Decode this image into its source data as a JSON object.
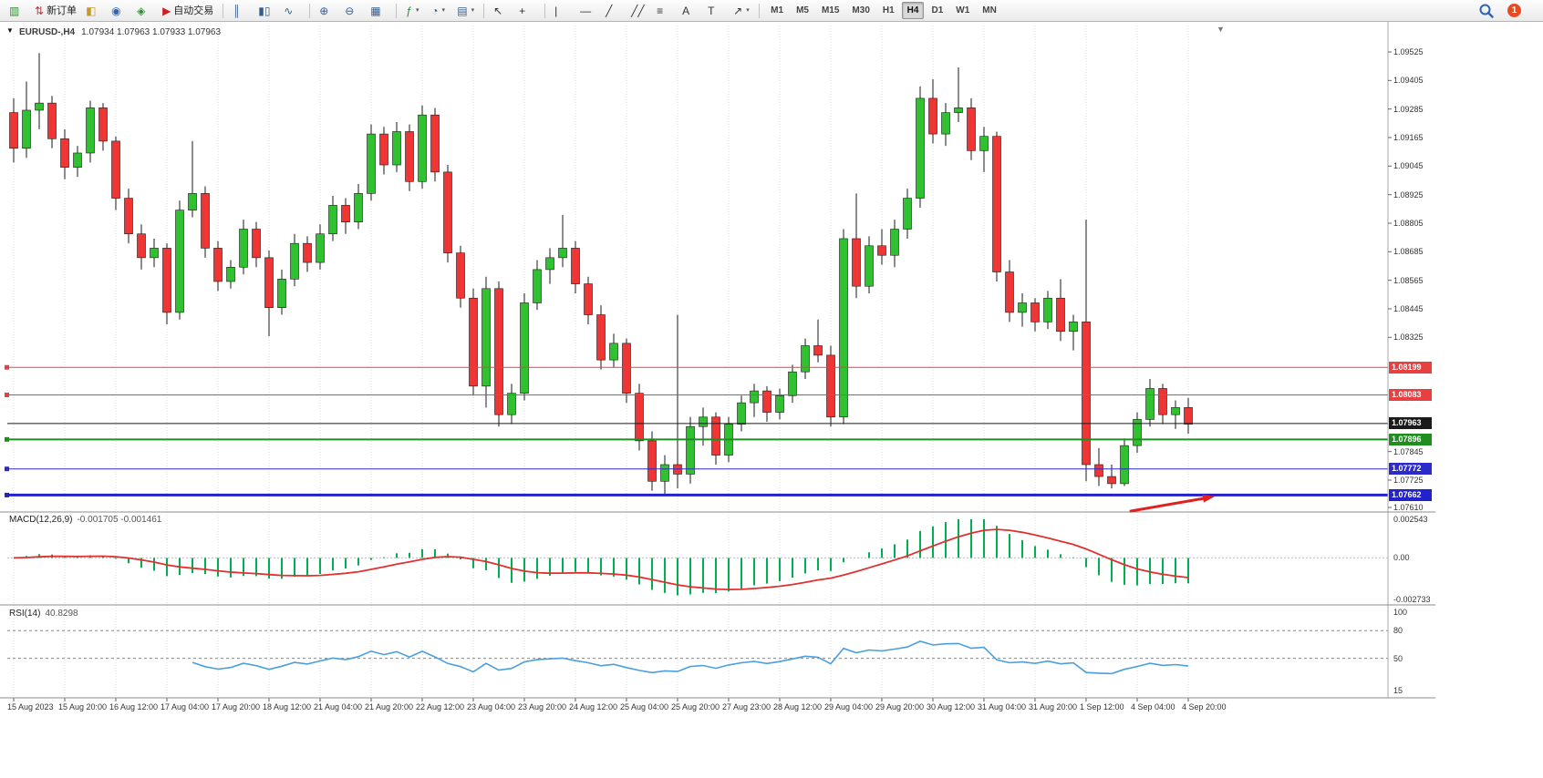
{
  "toolbar": {
    "groups": [
      {
        "name": "file",
        "buttons": [
          {
            "name": "new-chart-button",
            "glyph": "▥",
            "color": "#2e8b2e"
          },
          {
            "name": "new-order-button",
            "glyph": "⇅",
            "color": "#c03a3a",
            "label": "新订单"
          },
          {
            "name": "chart-profiles-button",
            "glyph": "◧",
            "color": "#c79a2e"
          },
          {
            "name": "market-watch-button",
            "glyph": "◉",
            "color": "#2a63b8"
          },
          {
            "name": "navigator-button",
            "glyph": "◈",
            "color": "#2e8b2e"
          },
          {
            "name": "autotrading-button",
            "glyph": "▶",
            "color": "#cc2222",
            "label": "自动交易"
          }
        ]
      },
      {
        "name": "chart-type",
        "buttons": [
          {
            "name": "bar-chart-button",
            "glyph": "║",
            "color": "#355c8c"
          },
          {
            "name": "candlestick-button",
            "glyph": "▮▯",
            "color": "#355c8c"
          },
          {
            "name": "line-chart-button",
            "glyph": "∿",
            "color": "#355c8c"
          }
        ]
      },
      {
        "name": "zoom",
        "buttons": [
          {
            "name": "zoom-in-button",
            "glyph": "⊕",
            "color": "#355c8c"
          },
          {
            "name": "zoom-out-button",
            "glyph": "⊖",
            "color": "#355c8c"
          },
          {
            "name": "tile-windows-button",
            "glyph": "▦",
            "color": "#355c8c"
          }
        ]
      },
      {
        "name": "tools",
        "buttons": [
          {
            "name": "indicators-button",
            "glyph": "ƒ",
            "color": "#2e8b2e",
            "caret": true
          },
          {
            "name": "periods-button",
            "glyph": "◔",
            "color": "#355c8c",
            "caret": true
          },
          {
            "name": "templates-button",
            "glyph": "▤",
            "color": "#355c8c",
            "caret": true
          }
        ]
      },
      {
        "name": "cursor",
        "buttons": [
          {
            "name": "cursor-button",
            "glyph": "↖",
            "color": "#333333"
          },
          {
            "name": "crosshair-button",
            "glyph": "+",
            "color": "#333333"
          }
        ]
      },
      {
        "name": "draw",
        "buttons": [
          {
            "name": "vertical-line-button",
            "glyph": "|",
            "color": "#333333"
          },
          {
            "name": "horizontal-line-button",
            "glyph": "—",
            "color": "#333333"
          },
          {
            "name": "trendline-button",
            "glyph": "╱",
            "color": "#333333"
          },
          {
            "name": "channel-button",
            "glyph": "╱╱",
            "color": "#333333"
          },
          {
            "name": "fibonacci-button",
            "glyph": "≡",
            "color": "#333333"
          },
          {
            "name": "text-button",
            "glyph": "A",
            "color": "#333333"
          },
          {
            "name": "label-button",
            "glyph": "T",
            "color": "#333333"
          },
          {
            "name": "shapes-button",
            "glyph": "↗",
            "color": "#333333",
            "caret": true
          }
        ]
      }
    ],
    "timeframes": [
      "M1",
      "M5",
      "M15",
      "M30",
      "H1",
      "H4",
      "D1",
      "W1",
      "MN"
    ],
    "active_timeframe": "H4",
    "notification_count": "1"
  },
  "chart": {
    "symbol": "EURUSD-,H4",
    "ohlc": "1.07934 1.07963 1.07933 1.07963",
    "caret_glyph": "▼",
    "shift_marker_glyph": "▼"
  },
  "chart_data": {
    "type": "candlestick",
    "symbol": "EURUSD-",
    "timeframe": "H4",
    "current_price": "1.07963",
    "colors": {
      "up": "#2fc12f",
      "down": "#f03535",
      "wick": "#1a1a1a",
      "grid": "#dcdcdc",
      "separator": "#8c8c8c",
      "axis_border": "#aaaaaa"
    },
    "ohlc": [
      [
        1.0927,
        1.0933,
        1.0906,
        1.0912
      ],
      [
        1.0912,
        1.094,
        1.0908,
        1.0928
      ],
      [
        1.0928,
        1.0952,
        1.092,
        1.0931
      ],
      [
        1.0931,
        1.0934,
        1.0912,
        1.0916
      ],
      [
        1.0916,
        1.092,
        1.0899,
        1.0904
      ],
      [
        1.0904,
        1.0913,
        1.09,
        1.091
      ],
      [
        1.091,
        1.0932,
        1.0906,
        1.0929
      ],
      [
        1.0929,
        1.0931,
        1.0911,
        1.0915
      ],
      [
        1.0915,
        1.0917,
        1.0886,
        1.0891
      ],
      [
        1.0891,
        1.0895,
        1.0872,
        1.0876
      ],
      [
        1.0876,
        1.088,
        1.0861,
        1.0866
      ],
      [
        1.0866,
        1.0874,
        1.0862,
        1.087
      ],
      [
        1.087,
        1.0872,
        1.0838,
        1.0843
      ],
      [
        1.0843,
        1.089,
        1.084,
        1.0886
      ],
      [
        1.0886,
        1.0915,
        1.0883,
        1.0893
      ],
      [
        1.0893,
        1.0896,
        1.0866,
        1.087
      ],
      [
        1.087,
        1.0873,
        1.0852,
        1.0856
      ],
      [
        1.0856,
        1.0865,
        1.0853,
        1.0862
      ],
      [
        1.0862,
        1.0882,
        1.0859,
        1.0878
      ],
      [
        1.0878,
        1.0881,
        1.0862,
        1.0866
      ],
      [
        1.0866,
        1.0869,
        1.0833,
        1.0845
      ],
      [
        1.0845,
        1.0861,
        1.0842,
        1.0857
      ],
      [
        1.0857,
        1.0876,
        1.0854,
        1.0872
      ],
      [
        1.0872,
        1.0875,
        1.086,
        1.0864
      ],
      [
        1.0864,
        1.088,
        1.0861,
        1.0876
      ],
      [
        1.0876,
        1.0892,
        1.0873,
        1.0888
      ],
      [
        1.0888,
        1.0891,
        1.0876,
        1.0881
      ],
      [
        1.0881,
        1.0897,
        1.0878,
        1.0893
      ],
      [
        1.0893,
        1.0922,
        1.089,
        1.0918
      ],
      [
        1.0918,
        1.0921,
        1.0901,
        1.0905
      ],
      [
        1.0905,
        1.0923,
        1.0902,
        1.0919
      ],
      [
        1.0919,
        1.0922,
        1.0894,
        1.0898
      ],
      [
        1.0898,
        1.093,
        1.0895,
        1.0926
      ],
      [
        1.0926,
        1.0929,
        1.0898,
        1.0902
      ],
      [
        1.0902,
        1.0905,
        1.0864,
        1.0868
      ],
      [
        1.0868,
        1.0871,
        1.0845,
        1.0849
      ],
      [
        1.0849,
        1.0853,
        1.0808,
        1.0812
      ],
      [
        1.0812,
        1.0858,
        1.0803,
        1.0853
      ],
      [
        1.0853,
        1.0856,
        1.0795,
        1.08
      ],
      [
        1.08,
        1.0813,
        1.0796,
        1.0809
      ],
      [
        1.0809,
        1.0851,
        1.0806,
        1.0847
      ],
      [
        1.0847,
        1.0865,
        1.0844,
        1.0861
      ],
      [
        1.0861,
        1.087,
        1.0855,
        1.0866
      ],
      [
        1.0866,
        1.0884,
        1.0862,
        1.087
      ],
      [
        1.087,
        1.0873,
        1.0851,
        1.0855
      ],
      [
        1.0855,
        1.0858,
        1.0838,
        1.0842
      ],
      [
        1.0842,
        1.0846,
        1.0819,
        1.0823
      ],
      [
        1.0823,
        1.0834,
        1.082,
        1.083
      ],
      [
        1.083,
        1.0832,
        1.0805,
        1.0809
      ],
      [
        1.0809,
        1.0813,
        1.0785,
        1.0789
      ],
      [
        1.0789,
        1.0793,
        1.0768,
        1.0772
      ],
      [
        1.0772,
        1.0783,
        1.0766,
        1.0779
      ],
      [
        1.0779,
        1.0842,
        1.0769,
        1.0775
      ],
      [
        1.0775,
        1.0799,
        1.0771,
        1.0795
      ],
      [
        1.0795,
        1.0803,
        1.0787,
        1.0799
      ],
      [
        1.0799,
        1.0801,
        1.0779,
        1.0783
      ],
      [
        1.0783,
        1.0799,
        1.078,
        1.0796
      ],
      [
        1.0796,
        1.0808,
        1.0793,
        1.0805
      ],
      [
        1.0805,
        1.0813,
        1.0799,
        1.081
      ],
      [
        1.081,
        1.0812,
        1.0797,
        1.0801
      ],
      [
        1.0801,
        1.0811,
        1.0798,
        1.0808
      ],
      [
        1.0808,
        1.0821,
        1.0805,
        1.0818
      ],
      [
        1.0818,
        1.0832,
        1.0815,
        1.0829
      ],
      [
        1.0829,
        1.084,
        1.0822,
        1.0825
      ],
      [
        1.0825,
        1.0829,
        1.0795,
        1.0799
      ],
      [
        1.0799,
        1.0878,
        1.0796,
        1.0874
      ],
      [
        1.0874,
        1.0893,
        1.0849,
        1.0854
      ],
      [
        1.0854,
        1.0875,
        1.0851,
        1.0871
      ],
      [
        1.0871,
        1.0878,
        1.0863,
        1.0867
      ],
      [
        1.0867,
        1.0882,
        1.0862,
        1.0878
      ],
      [
        1.0878,
        1.0895,
        1.0874,
        1.0891
      ],
      [
        1.0891,
        1.0938,
        1.0887,
        1.0933
      ],
      [
        1.0933,
        1.0941,
        1.0914,
        1.0918
      ],
      [
        1.0918,
        1.0931,
        1.0913,
        1.0927
      ],
      [
        1.0927,
        1.0946,
        1.0923,
        1.0929
      ],
      [
        1.0929,
        1.0933,
        1.0907,
        1.0911
      ],
      [
        1.0911,
        1.0921,
        1.0902,
        1.0917
      ],
      [
        1.0917,
        1.0919,
        1.0856,
        1.086
      ],
      [
        1.086,
        1.0865,
        1.0839,
        1.0843
      ],
      [
        1.0843,
        1.0851,
        1.0837,
        1.0847
      ],
      [
        1.0847,
        1.0849,
        1.0835,
        1.0839
      ],
      [
        1.0839,
        1.0852,
        1.0836,
        1.0849
      ],
      [
        1.0849,
        1.0857,
        1.0831,
        1.0835
      ],
      [
        1.0835,
        1.0842,
        1.0827,
        1.0839
      ],
      [
        1.0839,
        1.0882,
        1.0772,
        1.0779
      ],
      [
        1.0779,
        1.0786,
        1.077,
        1.0774
      ],
      [
        1.0774,
        1.0779,
        1.0769,
        1.0771
      ],
      [
        1.0771,
        1.079,
        1.077,
        1.0787
      ],
      [
        1.0787,
        1.0801,
        1.0784,
        1.0798
      ],
      [
        1.0798,
        1.0815,
        1.0795,
        1.0811
      ],
      [
        1.0811,
        1.0813,
        1.0796,
        1.08
      ],
      [
        1.08,
        1.0806,
        1.0794,
        1.0803
      ],
      [
        1.0803,
        1.0807,
        1.0792,
        1.0796
      ]
    ],
    "price_axis": {
      "ticks": [
        "1.09525",
        "1.09405",
        "1.09285",
        "1.09165",
        "1.09045",
        "1.08925",
        "1.08805",
        "1.08685",
        "1.08565",
        "1.08445",
        "1.08325",
        "1.07845",
        "1.07725",
        "1.07610"
      ]
    },
    "hlines": [
      {
        "price": 1.08199,
        "label": "1.08199",
        "color": "#e84040",
        "width": 1
      },
      {
        "price": 1.08083,
        "label": "1.08083",
        "color": "#e84040",
        "width": 1
      },
      {
        "price": 1.07963,
        "label": "1.07963",
        "color": "#1a1a1a",
        "width": 1,
        "role": "current-price"
      },
      {
        "price": 1.07896,
        "label": "1.07896",
        "color": "#1e8f1e",
        "width": 2
      },
      {
        "price": 1.07772,
        "label": "1.07772",
        "color": "#2b2bcc",
        "width": 1
      },
      {
        "price": 1.07662,
        "label": "1.07662",
        "color": "#2222cc",
        "width": 3
      }
    ],
    "time_labels": [
      "15 Aug 2023",
      "15 Aug 20:00",
      "16 Aug 12:00",
      "17 Aug 04:00",
      "17 Aug 20:00",
      "18 Aug 12:00",
      "21 Aug 04:00",
      "21 Aug 20:00",
      "22 Aug 12:00",
      "23 Aug 04:00",
      "23 Aug 20:00",
      "24 Aug 12:00",
      "25 Aug 04:00",
      "25 Aug 20:00",
      "27 Aug 23:00",
      "28 Aug 12:00",
      "29 Aug 04:00",
      "29 Aug 20:00",
      "30 Aug 12:00",
      "31 Aug 04:00",
      "31 Aug 20:00",
      "1 Sep 12:00",
      "4 Sep 04:00",
      "4 Sep 20:00"
    ],
    "indicators": {
      "macd": {
        "label": "MACD(12,26,9)",
        "values": "-0.001705 -0.001461",
        "params": [
          12,
          26,
          9
        ],
        "axis_labels": [
          "0.002543",
          "0.00",
          "-0.002733"
        ],
        "max": 0.002543,
        "min": -0.002733,
        "histogram_color": "#00b050",
        "signal_color": "#e03030"
      },
      "rsi": {
        "label": "RSI(14)",
        "value": "40.8298",
        "period": 14,
        "axis_labels": [
          "100",
          "80",
          "50",
          "15"
        ],
        "levels": [
          80,
          50
        ],
        "color": "#4a9fdc"
      }
    },
    "annotation": {
      "type": "arrow",
      "color": "#e02020",
      "from": [
        1240,
        561
      ],
      "to": [
        1332,
        545
      ]
    }
  }
}
